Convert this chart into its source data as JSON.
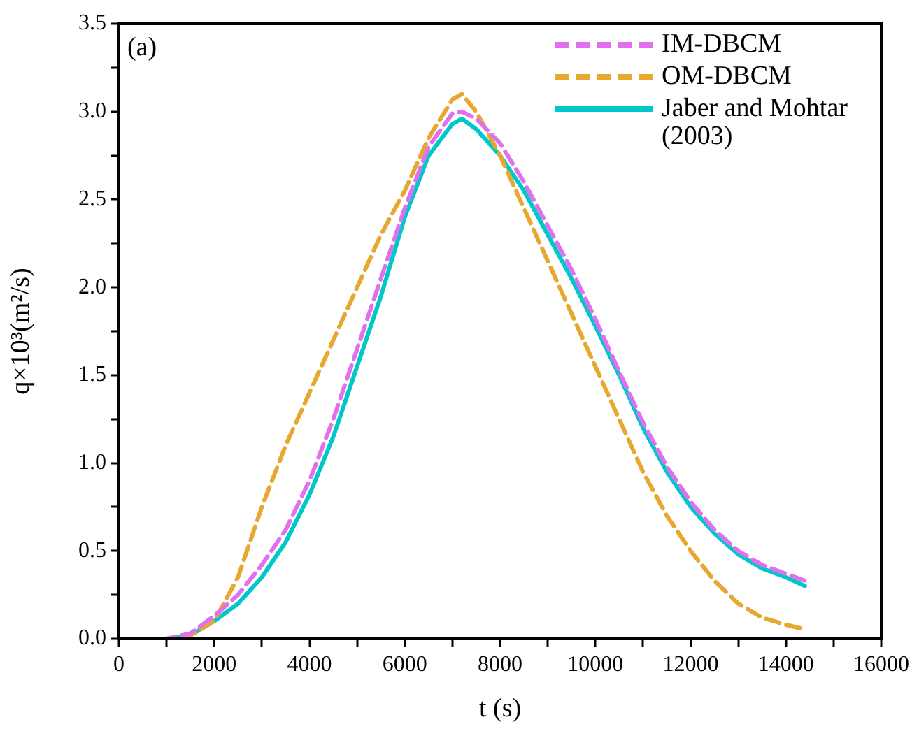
{
  "chart_data": {
    "type": "line",
    "xlabel": "t (s)",
    "ylabel": "q×10³(m²/s)",
    "annotations": [
      "(a)"
    ],
    "xlim": [
      0,
      16000
    ],
    "ylim": [
      0,
      3.5
    ],
    "xticks": [
      0,
      {
        "value": 1000,
        "label": null
      },
      2000,
      {
        "value": 3000,
        "label": null
      },
      4000,
      {
        "value": 5000,
        "label": null
      },
      6000,
      {
        "value": 7000,
        "label": null
      },
      8000,
      {
        "value": 9000,
        "label": null
      },
      10000,
      {
        "value": 11000,
        "label": null
      },
      12000,
      {
        "value": 13000,
        "label": null
      },
      14000,
      {
        "value": 15000,
        "label": null
      },
      16000
    ],
    "yticks": [
      {
        "value": 0,
        "label": "0.0"
      },
      {
        "value": 0.25,
        "label": null
      },
      {
        "value": 0.5,
        "label": "0.5"
      },
      {
        "value": 0.75,
        "label": null
      },
      {
        "value": 1,
        "label": "1.0"
      },
      {
        "value": 1.25,
        "label": null
      },
      {
        "value": 1.5,
        "label": "1.5"
      },
      {
        "value": 1.75,
        "label": null
      },
      {
        "value": 2,
        "label": "2.0"
      },
      {
        "value": 2.25,
        "label": null
      },
      {
        "value": 2.5,
        "label": "2.5"
      },
      {
        "value": 2.75,
        "label": null
      },
      {
        "value": 3,
        "label": "3.0"
      },
      {
        "value": 3.25,
        "label": null
      },
      {
        "value": 3.5,
        "label": "3.5"
      }
    ],
    "grid": false,
    "legend": "top right",
    "marker": "none",
    "series": [
      {
        "name": "IM-DBCM",
        "color": "#e070f0",
        "line_style": "dashed",
        "x": [
          0,
          1000,
          1500,
          2000,
          2500,
          3000,
          3500,
          4000,
          4500,
          5000,
          5500,
          6000,
          6500,
          7000,
          7200,
          7500,
          8000,
          8500,
          9000,
          9500,
          10000,
          10500,
          11000,
          11500,
          12000,
          12500,
          13000,
          13500,
          14000,
          14400
        ],
        "values": [
          0,
          0,
          0.03,
          0.13,
          0.25,
          0.42,
          0.62,
          0.9,
          1.25,
          1.65,
          2.05,
          2.45,
          2.8,
          2.99,
          3.0,
          2.96,
          2.82,
          2.6,
          2.35,
          2.1,
          1.82,
          1.52,
          1.23,
          0.98,
          0.78,
          0.62,
          0.5,
          0.42,
          0.37,
          0.33
        ]
      },
      {
        "name": "OM-DBCM",
        "color": "#e8a830",
        "line_style": "dashed",
        "x": [
          0,
          1000,
          1500,
          2000,
          2500,
          3000,
          3500,
          4000,
          4500,
          5000,
          5500,
          6000,
          6500,
          7000,
          7200,
          7500,
          8000,
          8500,
          9000,
          9500,
          10000,
          10500,
          11000,
          11500,
          12000,
          12500,
          13000,
          13500,
          14000,
          14300
        ],
        "values": [
          0,
          0,
          0.02,
          0.1,
          0.35,
          0.75,
          1.1,
          1.4,
          1.7,
          2.0,
          2.3,
          2.55,
          2.85,
          3.07,
          3.1,
          3.0,
          2.75,
          2.45,
          2.15,
          1.85,
          1.55,
          1.25,
          0.95,
          0.7,
          0.5,
          0.33,
          0.2,
          0.12,
          0.08,
          0.06
        ]
      },
      {
        "name": "Jaber and Mohtar (2003)",
        "color": "#00c8c8",
        "line_style": "solid",
        "x": [
          0,
          1000,
          1500,
          2000,
          2500,
          3000,
          3500,
          4000,
          4500,
          5000,
          5500,
          6000,
          6500,
          7000,
          7200,
          7500,
          8000,
          8500,
          9000,
          9500,
          10000,
          10500,
          11000,
          11500,
          12000,
          12500,
          13000,
          13500,
          14000,
          14400
        ],
        "values": [
          0,
          0,
          0.02,
          0.1,
          0.2,
          0.35,
          0.55,
          0.82,
          1.15,
          1.55,
          1.95,
          2.4,
          2.75,
          2.93,
          2.96,
          2.9,
          2.75,
          2.55,
          2.3,
          2.05,
          1.78,
          1.5,
          1.2,
          0.95,
          0.75,
          0.6,
          0.48,
          0.4,
          0.35,
          0.3
        ]
      }
    ]
  }
}
